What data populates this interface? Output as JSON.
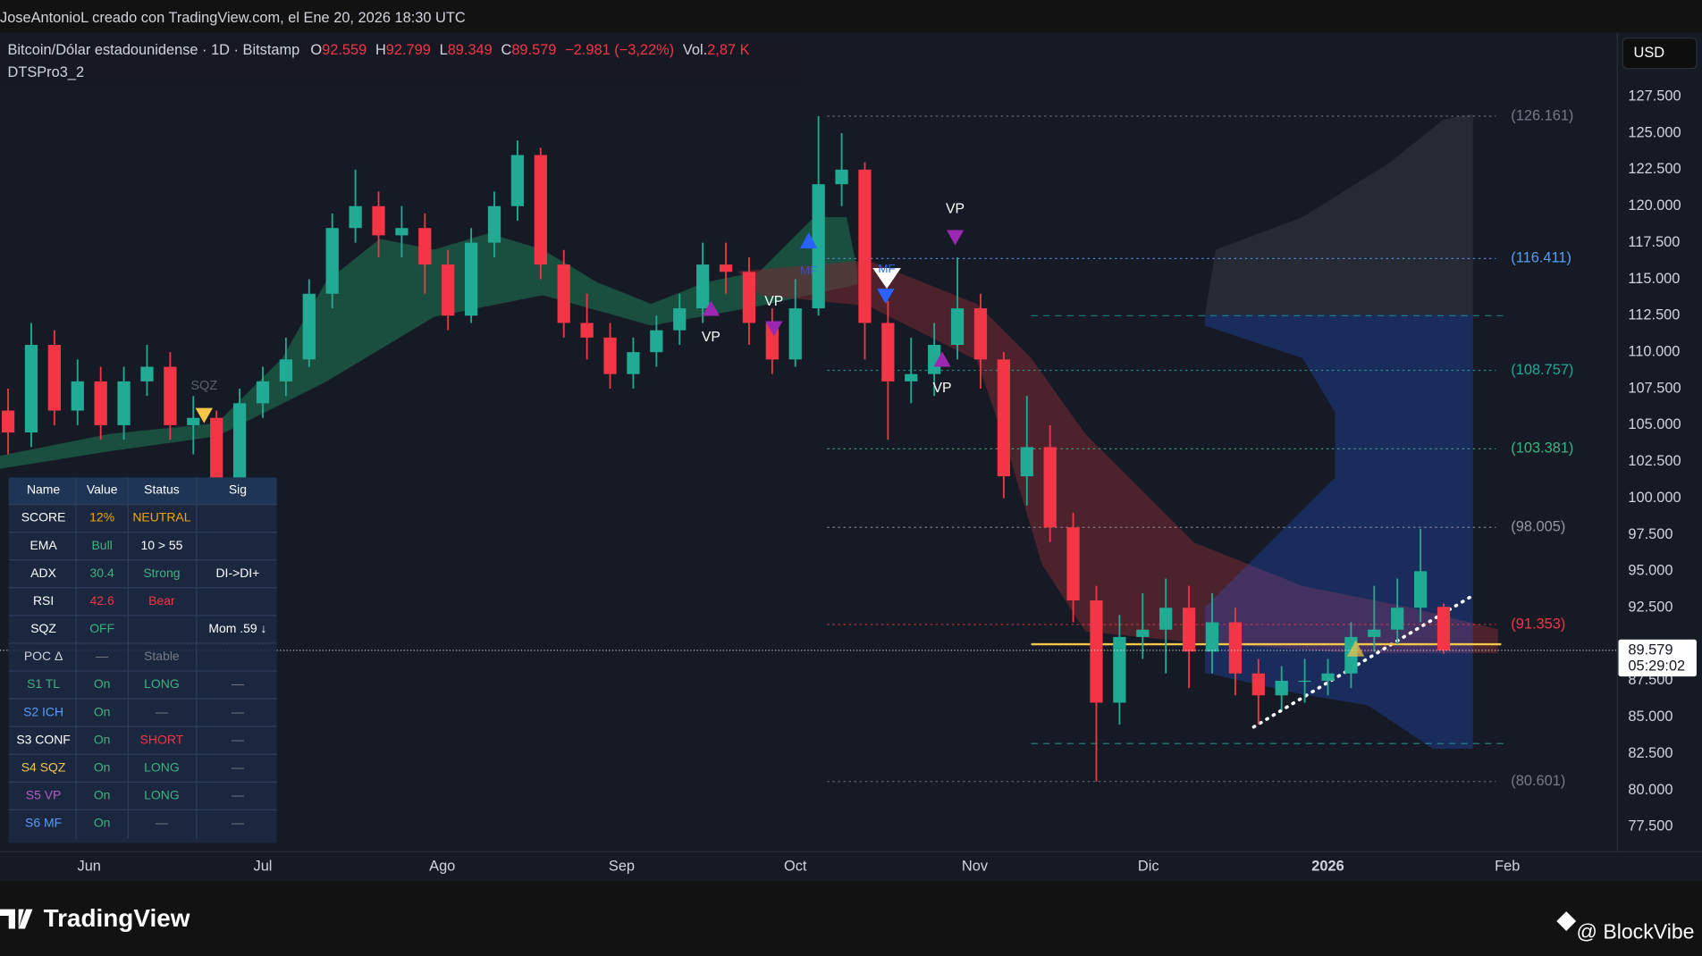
{
  "header": {
    "credit": "JoseAntonioL creado con TradingView.com, el Ene 20, 2026 18:30 UTC"
  },
  "chart_data": {
    "type": "candlestick",
    "title": "Bitcoin/Dólar estadounidense · 1D · Bitstamp",
    "subtitle": "DTSPro3_2",
    "legend_labels": [
      "O",
      "H",
      "L",
      "C"
    ],
    "change": "−2.981 (−3,22%)",
    "volume_label": "Vol.",
    "volume": "2,87 K",
    "currency": "USD",
    "countdown": "05:29:02",
    "up_color": "#22ab94",
    "down_color": "#f23645",
    "open": [
      106,
      104.5,
      110.5,
      106,
      108,
      105,
      108,
      109,
      105,
      105.5,
      101,
      106.5,
      108,
      109.5,
      114,
      118.5,
      120,
      118,
      118.5,
      116,
      112.5,
      117.5,
      120,
      123.5,
      116,
      112,
      111,
      108.5,
      110,
      111.5,
      113,
      116,
      115.5,
      112,
      109.5,
      113,
      121.5,
      122.5,
      112,
      108,
      108.5,
      110.5,
      113,
      109.5,
      101.5,
      103.5,
      98,
      93,
      86,
      90.5,
      91,
      92.5,
      89.5,
      91.5,
      88,
      86.5,
      87.5,
      87.5,
      88,
      90.5,
      91,
      92.5,
      92.559
    ],
    "high": [
      107.5,
      112,
      111.5,
      109.5,
      109,
      109,
      110.5,
      110,
      107,
      106,
      107.5,
      109,
      111,
      115,
      119.5,
      122.5,
      121,
      120,
      119.5,
      117,
      118.5,
      121,
      124.5,
      124,
      117,
      114,
      112,
      111,
      112.5,
      114,
      117.5,
      117.5,
      116.5,
      113,
      115,
      126.161,
      125,
      123,
      113.5,
      111,
      112,
      116.5,
      114,
      110,
      107,
      105,
      99,
      94,
      92,
      93.5,
      94.5,
      94,
      93.5,
      92.5,
      89,
      88.5,
      89,
      89,
      91.5,
      94,
      94.5,
      97.9,
      92.799
    ],
    "low": [
      103,
      103.5,
      105,
      105,
      104,
      104,
      107,
      104,
      103,
      99.5,
      100.5,
      105.5,
      107,
      109,
      113,
      117.5,
      116.5,
      116.5,
      114,
      111.5,
      112,
      116.5,
      119,
      115,
      111,
      109.5,
      107.5,
      107.5,
      109,
      110.5,
      112,
      114,
      110.5,
      108.5,
      109,
      112.5,
      120,
      109.5,
      104,
      106.5,
      107,
      109.5,
      107.5,
      100,
      99.5,
      97,
      91.5,
      80.601,
      84.5,
      89,
      88,
      87,
      88,
      86.5,
      84.5,
      85.5,
      86,
      86.5,
      87,
      89.5,
      90,
      91.5,
      89.349
    ],
    "close": [
      104.5,
      110.5,
      106,
      108,
      105,
      108,
      109,
      105,
      105.5,
      101,
      106.5,
      108,
      109.5,
      114,
      118.5,
      120,
      118,
      118.5,
      116,
      112.5,
      117.5,
      120,
      123.5,
      116,
      112,
      111,
      108.5,
      110,
      111.5,
      113,
      116,
      115.5,
      112,
      109.5,
      113,
      121.5,
      122.5,
      112,
      108,
      108.5,
      110.5,
      113,
      109.5,
      101.5,
      103.5,
      98,
      93,
      86,
      90.5,
      91,
      92.5,
      89.5,
      91.5,
      88,
      86.5,
      87.5,
      87.5,
      88,
      90.5,
      91,
      92.5,
      95,
      89.579
    ],
    "xlim": [
      -0.35,
      69.5
    ],
    "xticks": [
      {
        "value": 3.5,
        "label": "Jun"
      },
      {
        "value": 11,
        "label": "Jul"
      },
      {
        "value": 18.75,
        "label": "Ago"
      },
      {
        "value": 26.5,
        "label": "Sep"
      },
      {
        "value": 34,
        "label": "Oct"
      },
      {
        "value": 41.75,
        "label": "Nov"
      },
      {
        "value": 49.25,
        "label": "Dic"
      },
      {
        "value": 57,
        "label": "2026"
      },
      {
        "value": 64.75,
        "label": "Feb"
      }
    ],
    "ylim": [
      75.79,
      131.88
    ],
    "yticks": [
      {
        "value": 127.5,
        "label": "127.500"
      },
      {
        "value": 125,
        "label": "125.000"
      },
      {
        "value": 122.5,
        "label": "122.500"
      },
      {
        "value": 120,
        "label": "120.000"
      },
      {
        "value": 117.5,
        "label": "117.500"
      },
      {
        "value": 115,
        "label": "115.000"
      },
      {
        "value": 112.5,
        "label": "112.500"
      },
      {
        "value": 110,
        "label": "110.000"
      },
      {
        "value": 107.5,
        "label": "107.500"
      },
      {
        "value": 105,
        "label": "105.000"
      },
      {
        "value": 102.5,
        "label": "102.500"
      },
      {
        "value": 100,
        "label": "100.000"
      },
      {
        "value": 97.5,
        "label": "97.500"
      },
      {
        "value": 95,
        "label": "95.000"
      },
      {
        "value": 92.5,
        "label": "92.500"
      },
      {
        "value": 87.5,
        "label": "87.500"
      },
      {
        "value": 85,
        "label": "85.000"
      },
      {
        "value": 82.5,
        "label": "82.500"
      },
      {
        "value": 80,
        "label": "80.000"
      },
      {
        "value": 77.5,
        "label": "77.500"
      }
    ],
    "grid": false,
    "levels": [
      {
        "value": 126.161,
        "label": "(126.161)",
        "color": "#787b86"
      },
      {
        "value": 116.411,
        "label": "(116.411)",
        "color": "#5b9cf6"
      },
      {
        "value": 108.757,
        "label": "(108.757)",
        "color": "#26a69a"
      },
      {
        "value": 103.381,
        "label": "(103.381)",
        "color": "#3fb37f"
      },
      {
        "value": 98.005,
        "label": "(98.005)",
        "color": "#9598a1"
      },
      {
        "value": 91.353,
        "label": "(91.353)",
        "color": "#f23645"
      },
      {
        "value": 80.601,
        "label": "(80.601)",
        "color": "#787b86"
      }
    ],
    "poc": 90,
    "bands": [
      112.5,
      83.2
    ],
    "annotations": [
      "VP",
      "VP",
      "VP",
      "VP",
      "SQZ",
      "MF",
      "MF"
    ]
  },
  "table": {
    "header": [
      "Name",
      "Value",
      "Status",
      "Sig"
    ],
    "rows": [
      [
        "SCORE",
        "12%",
        "NEUTRAL",
        null
      ],
      [
        "EMA",
        "Bull",
        "10 > 55",
        null
      ],
      [
        "ADX",
        "30.4",
        "Strong",
        "DI->DI+"
      ],
      [
        "RSI",
        "42.6",
        "Bear",
        null
      ],
      [
        "SQZ",
        "OFF",
        null,
        "Mom .59 ↓"
      ],
      [
        "POC Δ",
        "—",
        "Stable",
        null
      ],
      [
        "S1 TL",
        "On",
        "LONG",
        "—"
      ],
      [
        "S2 ICH",
        "On",
        "—",
        "—"
      ],
      [
        "S3 CONF",
        "On",
        "SHORT",
        "—"
      ],
      [
        "S4 SQZ",
        "On",
        "LONG",
        "—"
      ],
      [
        "S5 VP",
        "On",
        "LONG",
        "—"
      ],
      [
        "S6 MF",
        "On",
        "—",
        "—"
      ]
    ]
  },
  "footer": {
    "brand": "TradingView",
    "watermark": "@ BlockVibe"
  }
}
